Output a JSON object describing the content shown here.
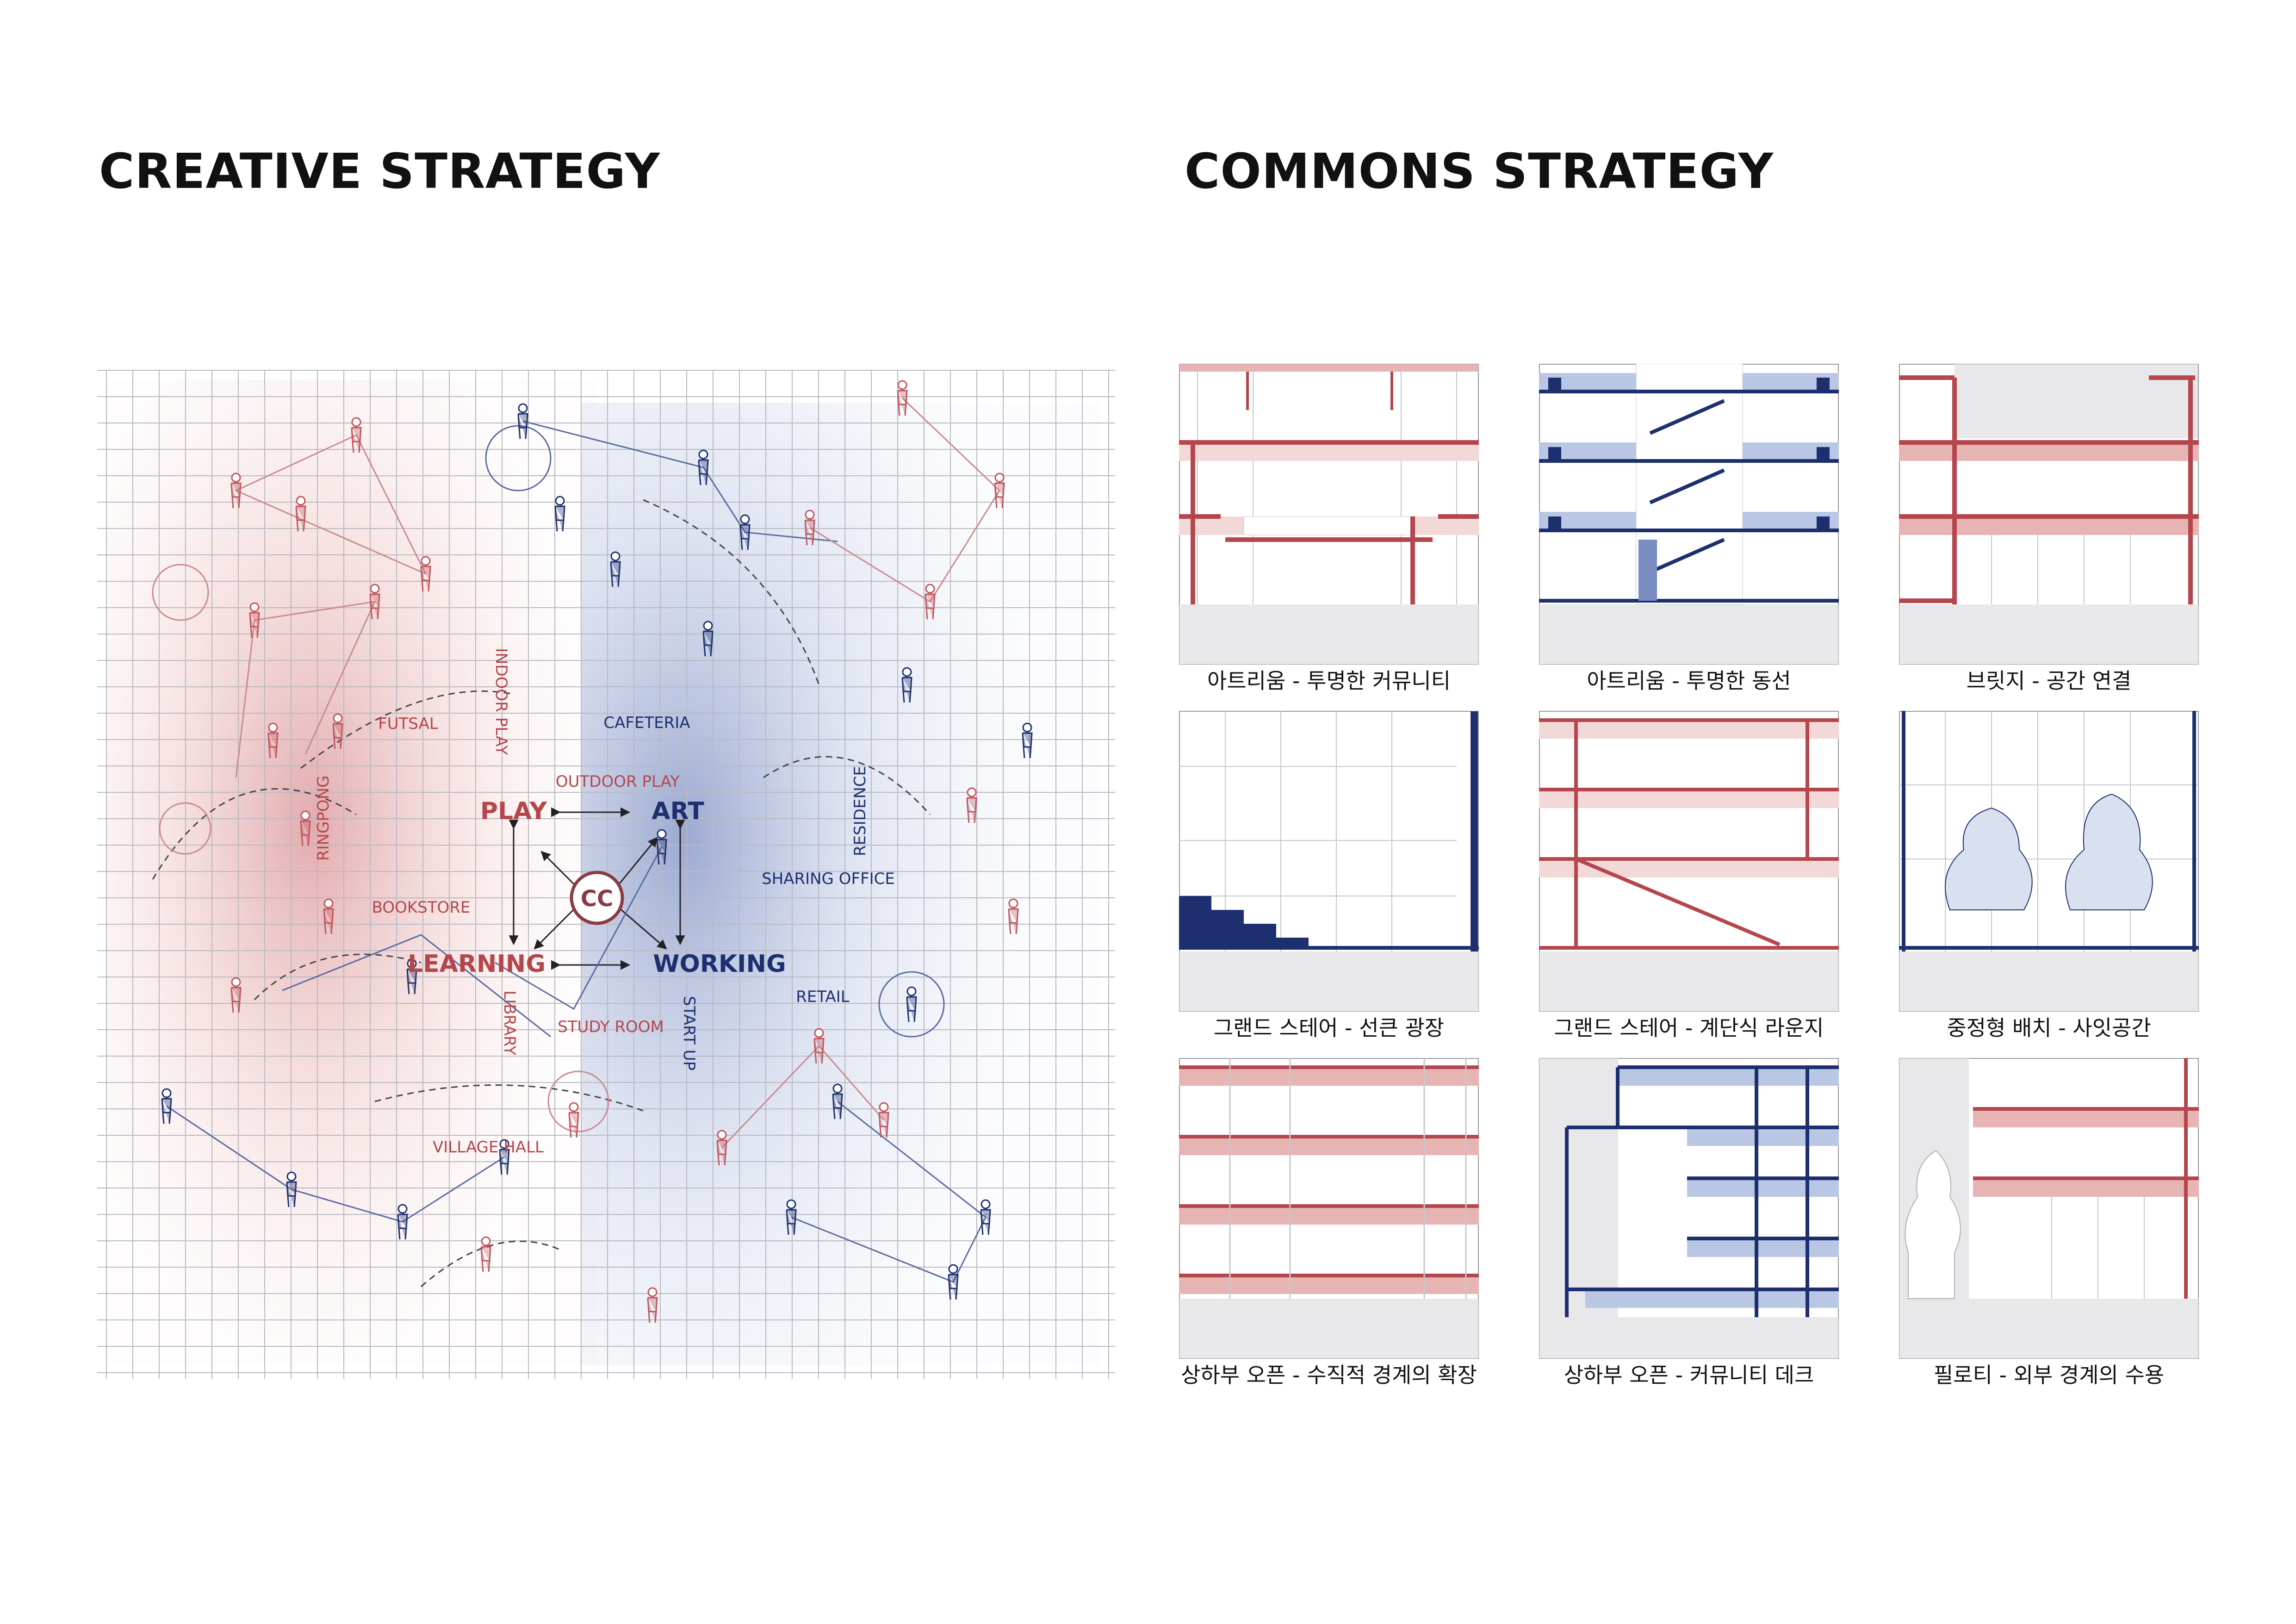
{
  "titles": {
    "creative": "CREATIVE STRATEGY",
    "commons": "COMMONS STRATEGY"
  },
  "colors": {
    "red": "#b5464d",
    "red_light": "#e7b4b4",
    "blue": "#1d2f6f",
    "blue_light": "#b9c6e4",
    "grid": "#c8c8cc",
    "ground": "#e8e8ea"
  },
  "creative_diagram": {
    "center": "CC",
    "core": {
      "play": "PLAY",
      "art": "ART",
      "learning": "LEARNING",
      "working": "WORKING"
    },
    "labels": {
      "futsal": "FUTSAL",
      "indoor_play": "INDOOR PLAY",
      "cafeteria": "CAFETERIA",
      "outdoor_play": "OUTDOOR PLAY",
      "residence": "RESIDENCE",
      "ringpong": "RINGPONG",
      "sharing_office": "SHARING OFFICE",
      "bookstore": "BOOKSTORE",
      "retail": "RETAIL",
      "library": "LIBRARY",
      "study_room": "STUDY ROOM",
      "start_up": "START UP",
      "village_hall": "VILLAGE HALL"
    }
  },
  "commons_panels": [
    {
      "caption": "아트리움 - 투명한 커뮤니티",
      "icon": "atrium-community-section"
    },
    {
      "caption": "아트리움 - 투명한 동선",
      "icon": "atrium-circulation-section"
    },
    {
      "caption": "브릿지 - 공간 연결",
      "icon": "bridge-section"
    },
    {
      "caption": "그랜드 스테어 - 선큰 광장",
      "icon": "grand-stair-sunken-section"
    },
    {
      "caption": "그랜드 스테어 - 계단식 라운지",
      "icon": "grand-stair-lounge-section"
    },
    {
      "caption": "중정형 배치 - 사잇공간",
      "icon": "courtyard-section"
    },
    {
      "caption": "상하부 오픈 - 수직적 경계의 확장",
      "icon": "vertical-open-section"
    },
    {
      "caption": "상하부 오픈 - 커뮤니티 데크",
      "icon": "community-deck-section"
    },
    {
      "caption": "필로티 - 외부 경계의 수용",
      "icon": "piloti-section"
    }
  ]
}
